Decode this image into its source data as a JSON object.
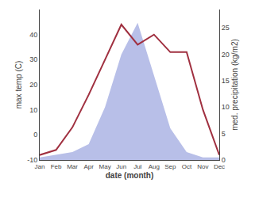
{
  "chart_data": {
    "type": "line",
    "xlabel": "date (month)",
    "ylabel": "max temp (C)",
    "y2label": "med. precipitation (kg/m2)",
    "categories": [
      "Jan",
      "Feb",
      "Mar",
      "Apr",
      "May",
      "Jun",
      "Jul",
      "Aug",
      "Sep",
      "Oct",
      "Nov",
      "Dec"
    ],
    "series": [
      {
        "type": "area",
        "axis": "y2",
        "color": "#b8bfe8",
        "values": [
          0.5,
          1.0,
          1.5,
          3,
          10,
          20,
          26,
          16,
          6,
          1.5,
          0.5,
          0.5
        ]
      },
      {
        "type": "line",
        "color": "#a03040",
        "values": [
          -8,
          -6,
          3,
          16,
          30,
          44,
          36,
          40,
          33,
          33,
          10,
          -8
        ]
      }
    ],
    "ylim": [
      -10,
      50
    ],
    "yticks": [
      -10,
      0,
      10,
      20,
      30,
      40
    ],
    "y2lim": [
      0,
      28.5
    ],
    "y2ticks": [
      0,
      5,
      10,
      15,
      20,
      25
    ],
    "grid": false
  }
}
